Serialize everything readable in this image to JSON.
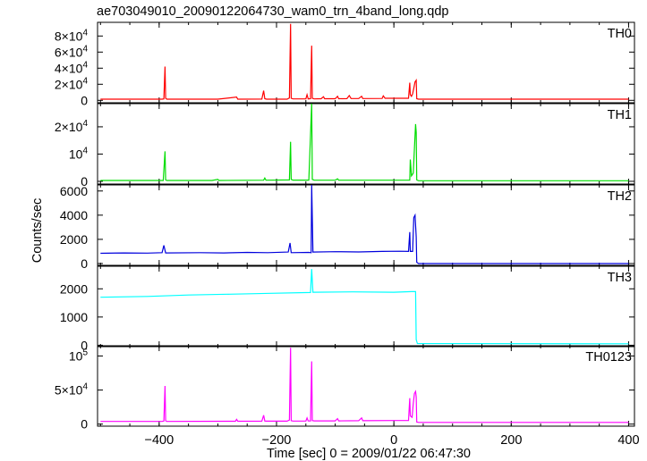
{
  "title": "ae703049010_20090122064730_wam0_trn_4band_long.qdp",
  "xlabel": "Time [sec] 0 = 2009/01/22 06:47:30",
  "ylabel": "Counts/sec",
  "chart_data": {
    "type": "line",
    "title": "ae703049010_20090122064730_wam0_trn_4band_long.qdp",
    "xlabel": "Time [sec] 0 = 2009/01/22 06:47:30",
    "ylabel": "Counts/sec",
    "xlim": [
      -505,
      410
    ],
    "x_ticks": [
      -400,
      -200,
      0,
      200,
      400
    ],
    "x_tick_labels": [
      "−400",
      "−200",
      "0",
      "200",
      "400"
    ],
    "grid": false,
    "panels": [
      {
        "name": "TH0",
        "color": "#ff0000",
        "ylim": [
          -3000,
          97000
        ],
        "ticks": [
          0,
          20000,
          40000,
          60000,
          80000
        ],
        "tick_labels": [
          {
            "m": "0",
            "e": ""
          },
          {
            "m": "2×10",
            "e": "4"
          },
          {
            "m": "4×10",
            "e": "4"
          },
          {
            "m": "6×10",
            "e": "4"
          },
          {
            "m": "8×10",
            "e": "4"
          }
        ],
        "points": [
          [
            -500,
            1500
          ],
          [
            -395,
            1500
          ],
          [
            -392,
            1800
          ],
          [
            -390,
            42000
          ],
          [
            -389,
            2500
          ],
          [
            -387,
            1500
          ],
          [
            -300,
            1500
          ],
          [
            -268,
            4000
          ],
          [
            -266,
            1500
          ],
          [
            -225,
            1600
          ],
          [
            -222,
            12000
          ],
          [
            -220,
            2000
          ],
          [
            -217,
            1500
          ],
          [
            -182,
            1500
          ],
          [
            -178,
            3000
          ],
          [
            -176,
            95000
          ],
          [
            -175,
            2500
          ],
          [
            -172,
            1800
          ],
          [
            -150,
            1800
          ],
          [
            -148,
            7000
          ],
          [
            -146,
            1800
          ],
          [
            -142,
            2000
          ],
          [
            -140,
            68000
          ],
          [
            -139,
            2500
          ],
          [
            -136,
            1800
          ],
          [
            -124,
            2000
          ],
          [
            -120,
            4500
          ],
          [
            -118,
            2000
          ],
          [
            -100,
            2000
          ],
          [
            -96,
            5000
          ],
          [
            -94,
            2000
          ],
          [
            -80,
            2100
          ],
          [
            -76,
            6000
          ],
          [
            -73,
            2200
          ],
          [
            -60,
            2200
          ],
          [
            -55,
            5000
          ],
          [
            -53,
            2200
          ],
          [
            -20,
            2300
          ],
          [
            -18,
            5500
          ],
          [
            -15,
            2500
          ],
          [
            25,
            2600
          ],
          [
            27,
            22000
          ],
          [
            28,
            7000
          ],
          [
            30,
            5000
          ],
          [
            32,
            8000
          ],
          [
            34,
            15000
          ],
          [
            36,
            23000
          ],
          [
            38,
            25000
          ],
          [
            39,
            2000
          ],
          [
            42,
            1500
          ],
          [
            400,
            1500
          ]
        ]
      },
      {
        "name": "TH1",
        "color": "#00dd00",
        "ylim": [
          -1000,
          28500
        ],
        "ticks": [
          0,
          10000,
          20000
        ],
        "tick_labels": [
          {
            "m": "0",
            "e": ""
          },
          {
            "m": "10",
            "e": "4"
          },
          {
            "m": "2×10",
            "e": "4"
          }
        ],
        "points": [
          [
            -500,
            300
          ],
          [
            -393,
            300
          ],
          [
            -390,
            11000
          ],
          [
            -389,
            500
          ],
          [
            -387,
            300
          ],
          [
            -310,
            300
          ],
          [
            -300,
            700
          ],
          [
            -298,
            300
          ],
          [
            -222,
            400
          ],
          [
            -220,
            1200
          ],
          [
            -218,
            400
          ],
          [
            -178,
            500
          ],
          [
            -176,
            14500
          ],
          [
            -175,
            700
          ],
          [
            -172,
            450
          ],
          [
            -145,
            450
          ],
          [
            -140,
            28500
          ],
          [
            -139,
            700
          ],
          [
            -136,
            450
          ],
          [
            -100,
            400
          ],
          [
            -96,
            900
          ],
          [
            -94,
            400
          ],
          [
            0,
            400
          ],
          [
            27,
            400
          ],
          [
            28,
            8000
          ],
          [
            30,
            2000
          ],
          [
            33,
            3000
          ],
          [
            35,
            12000
          ],
          [
            37,
            21000
          ],
          [
            38,
            18000
          ],
          [
            39,
            500
          ],
          [
            42,
            200
          ],
          [
            400,
            200
          ]
        ]
      },
      {
        "name": "TH2",
        "color": "#0000dd",
        "ylim": [
          -150,
          6500
        ],
        "ticks": [
          0,
          2000,
          4000,
          6000
        ],
        "tick_labels": [
          {
            "m": "0",
            "e": ""
          },
          {
            "m": "2000",
            "e": ""
          },
          {
            "m": "4000",
            "e": ""
          },
          {
            "m": "6000",
            "e": ""
          }
        ],
        "points": [
          [
            -500,
            850
          ],
          [
            -460,
            880
          ],
          [
            -420,
            860
          ],
          [
            -395,
            900
          ],
          [
            -392,
            1500
          ],
          [
            -389,
            880
          ],
          [
            -330,
            900
          ],
          [
            -290,
            880
          ],
          [
            -250,
            920
          ],
          [
            -215,
            900
          ],
          [
            -180,
            950
          ],
          [
            -177,
            1700
          ],
          [
            -175,
            900
          ],
          [
            -145,
            920
          ],
          [
            -141,
            900
          ],
          [
            -140,
            6500
          ],
          [
            -138,
            950
          ],
          [
            -100,
            980
          ],
          [
            -60,
            960
          ],
          [
            -20,
            1000
          ],
          [
            10,
            1020
          ],
          [
            25,
            1000
          ],
          [
            27,
            2600
          ],
          [
            28,
            1000
          ],
          [
            32,
            1000
          ],
          [
            34,
            3800
          ],
          [
            36,
            4000
          ],
          [
            38,
            2200
          ],
          [
            39,
            100
          ],
          [
            42,
            0
          ],
          [
            400,
            0
          ]
        ]
      },
      {
        "name": "TH3",
        "color": "#00ffff",
        "ylim": [
          -50,
          2800
        ],
        "ticks": [
          0,
          1000,
          2000
        ],
        "tick_labels": [
          {
            "m": "0",
            "e": ""
          },
          {
            "m": "1000",
            "e": ""
          },
          {
            "m": "2000",
            "e": ""
          }
        ],
        "points": [
          [
            -500,
            1700
          ],
          [
            -420,
            1730
          ],
          [
            -350,
            1780
          ],
          [
            -280,
            1810
          ],
          [
            -210,
            1840
          ],
          [
            -142,
            1870
          ],
          [
            -140,
            2700
          ],
          [
            -138,
            1880
          ],
          [
            -70,
            1890
          ],
          [
            0,
            1880
          ],
          [
            30,
            1900
          ],
          [
            37,
            1900
          ],
          [
            38,
            200
          ],
          [
            40,
            60
          ],
          [
            400,
            50
          ]
        ]
      },
      {
        "name": "TH0123",
        "color": "#ff00ff",
        "ylim": [
          -3000,
          115000
        ],
        "ticks": [
          0,
          50000,
          100000
        ],
        "tick_labels": [
          {
            "m": "0",
            "e": ""
          },
          {
            "m": "5×10",
            "e": "4"
          },
          {
            "m": "10",
            "e": "5"
          }
        ],
        "points": [
          [
            -500,
            4000
          ],
          [
            -395,
            4000
          ],
          [
            -392,
            4500
          ],
          [
            -390,
            56000
          ],
          [
            -389,
            5000
          ],
          [
            -387,
            4000
          ],
          [
            -270,
            4200
          ],
          [
            -268,
            7000
          ],
          [
            -266,
            4200
          ],
          [
            -225,
            4300
          ],
          [
            -222,
            13000
          ],
          [
            -220,
            4500
          ],
          [
            -218,
            4300
          ],
          [
            -182,
            4400
          ],
          [
            -178,
            6000
          ],
          [
            -176,
            112000
          ],
          [
            -175,
            5000
          ],
          [
            -172,
            4500
          ],
          [
            -150,
            4500
          ],
          [
            -148,
            9000
          ],
          [
            -146,
            4600
          ],
          [
            -142,
            4600
          ],
          [
            -140,
            92000
          ],
          [
            -139,
            5200
          ],
          [
            -136,
            4700
          ],
          [
            -100,
            4800
          ],
          [
            -96,
            8000
          ],
          [
            -94,
            4800
          ],
          [
            -60,
            5000
          ],
          [
            -55,
            9000
          ],
          [
            -53,
            5000
          ],
          [
            0,
            5200
          ],
          [
            25,
            5400
          ],
          [
            27,
            38000
          ],
          [
            28,
            12000
          ],
          [
            31,
            10000
          ],
          [
            33,
            30000
          ],
          [
            35,
            45000
          ],
          [
            37,
            48000
          ],
          [
            38,
            40000
          ],
          [
            39,
            3000
          ],
          [
            42,
            2500
          ],
          [
            400,
            2500
          ]
        ]
      }
    ]
  }
}
